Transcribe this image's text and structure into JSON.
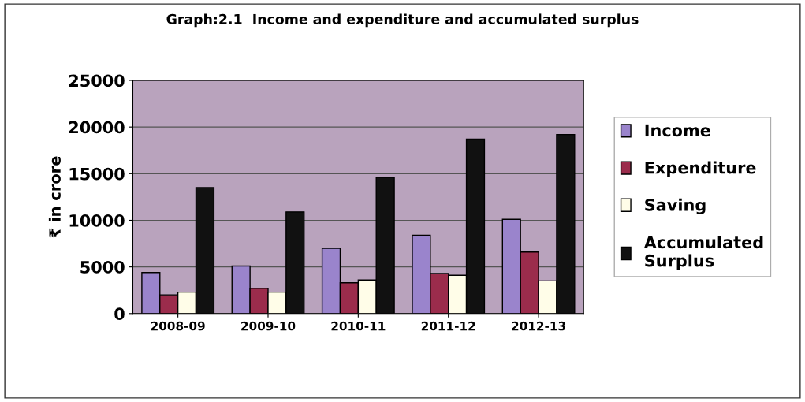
{
  "chart_data": {
    "type": "bar",
    "title": "Graph:2.1  Income and expenditure and accumulated surplus",
    "ylabel": "₹ in crore",
    "categories": [
      "2008-09",
      "2009-10",
      "2010-11",
      "2011-12",
      "2012-13"
    ],
    "series": [
      {
        "name": "Income",
        "color": "#9a84cc",
        "values": [
          4400,
          5100,
          7000,
          8400,
          10100
        ]
      },
      {
        "name": "Expenditure",
        "color": "#9b2c4c",
        "values": [
          2000,
          2700,
          3300,
          4300,
          6600
        ]
      },
      {
        "name": "Saving",
        "color": "#fffde8",
        "values": [
          2300,
          2300,
          3600,
          4100,
          3500
        ]
      },
      {
        "name": "Accumulated\nSurplus",
        "color": "#111111",
        "values": [
          13500,
          10900,
          14600,
          18700,
          19200
        ]
      }
    ],
    "ylim": [
      0,
      25000
    ],
    "yticks": [
      0,
      5000,
      10000,
      15000,
      20000,
      25000
    ],
    "grid": "y",
    "legend": "right"
  }
}
